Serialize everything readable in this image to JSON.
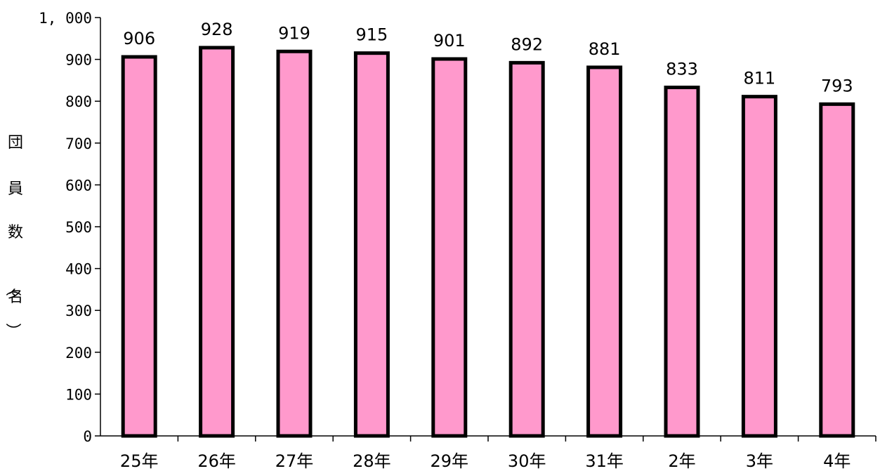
{
  "chart_data": {
    "type": "bar",
    "categories": [
      "25年",
      "26年",
      "27年",
      "28年",
      "29年",
      "30年",
      "31年",
      "2年",
      "3年",
      "4年"
    ],
    "values": [
      906,
      928,
      919,
      915,
      901,
      892,
      881,
      833,
      811,
      793
    ],
    "data_labels": [
      "906",
      "928",
      "919",
      "915",
      "901",
      "892",
      "881",
      "833",
      "811",
      "793"
    ],
    "title": "",
    "xlabel": "",
    "ylabel": "団員数（名）",
    "ylabel_chars": [
      "団",
      "員",
      "数",
      "（",
      "名",
      "）"
    ],
    "ylim": [
      0,
      1000
    ],
    "yticks": [
      0,
      100,
      200,
      300,
      400,
      500,
      600,
      700,
      800,
      900,
      1000
    ],
    "ytick_labels": [
      "0",
      "100",
      "200",
      "300",
      "400",
      "500",
      "600",
      "700",
      "800",
      "900",
      "1, 000"
    ],
    "grid": false,
    "legend": "none",
    "colors": {
      "bar_fill": "#ff99cc",
      "bar_stroke": "#000000",
      "axis": "#000000"
    }
  }
}
